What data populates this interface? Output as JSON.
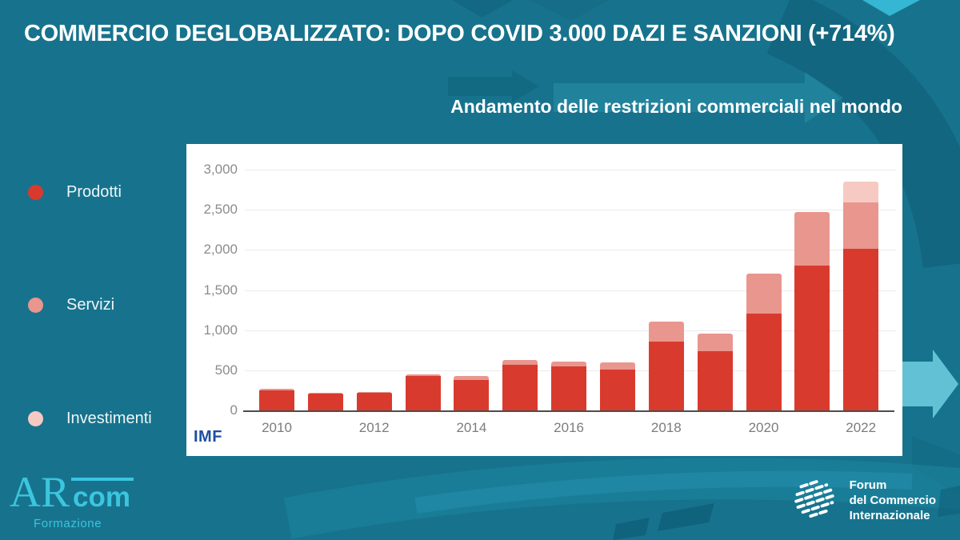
{
  "header": {
    "title": "COMMERCIO DEGLOBALIZZATO: DOPO COVID 3.000 DAZI E SANZIONI (+714%)"
  },
  "colors": {
    "background": "#17738d",
    "panel": "#ffffff",
    "prodotti": "#d93a2e",
    "servizi": "#e9968e",
    "investimenti": "#f6cac3",
    "axis_text": "#8c8c8c",
    "imf_blue": "#1d4fa3",
    "arcom_cyan": "#3cc5df"
  },
  "legend": {
    "items": [
      {
        "label": "Prodotti",
        "color_key": "prodotti"
      },
      {
        "label": "Servizi",
        "color_key": "servizi"
      },
      {
        "label": "Investimenti",
        "color_key": "investimenti"
      }
    ]
  },
  "chart_data": {
    "type": "bar",
    "stacked": true,
    "title": "Andamento delle restrizioni commerciali nel mondo",
    "source": "IMF",
    "categories": [
      "2010",
      "2011",
      "2012",
      "2013",
      "2014",
      "2015",
      "2016",
      "2017",
      "2018",
      "2019",
      "2020",
      "2021",
      "2022"
    ],
    "series": [
      {
        "name": "Prodotti",
        "color_key": "prodotti",
        "values": [
          260,
          215,
          225,
          435,
          390,
          580,
          555,
          515,
          870,
          750,
          1215,
          1810,
          2020
        ]
      },
      {
        "name": "Servizi",
        "color_key": "servizi",
        "values": [
          15,
          10,
          10,
          20,
          45,
          60,
          65,
          90,
          250,
          215,
          500,
          670,
          580
        ]
      },
      {
        "name": "Investimenti",
        "color_key": "investimenti",
        "values": [
          0,
          0,
          0,
          0,
          0,
          0,
          0,
          0,
          0,
          0,
          0,
          0,
          260
        ]
      }
    ],
    "ylim": [
      0,
      3000
    ],
    "yticks": [
      {
        "value": 0,
        "label": "0"
      },
      {
        "value": 500,
        "label": "500"
      },
      {
        "value": 1000,
        "label": "1,000"
      },
      {
        "value": 1500,
        "label": "1,500"
      },
      {
        "value": 2000,
        "label": "2,000"
      },
      {
        "value": 2500,
        "label": "2,500"
      },
      {
        "value": 3000,
        "label": "3,000"
      }
    ],
    "xticks": [
      {
        "index": 0,
        "label": "2010"
      },
      {
        "index": 2,
        "label": "2012"
      },
      {
        "index": 4,
        "label": "2014"
      },
      {
        "index": 6,
        "label": "2016"
      },
      {
        "index": 8,
        "label": "2018"
      },
      {
        "index": 10,
        "label": "2020"
      },
      {
        "index": 12,
        "label": "2022"
      }
    ],
    "legend_position": "left",
    "grid": true
  },
  "footer": {
    "arcom_logo": {
      "serif": "AR",
      "sans": "com",
      "subtitle": "Formazione"
    },
    "forum_logo": {
      "line1": "Forum",
      "line2": "del Commercio",
      "line3": "Internazionale"
    }
  }
}
